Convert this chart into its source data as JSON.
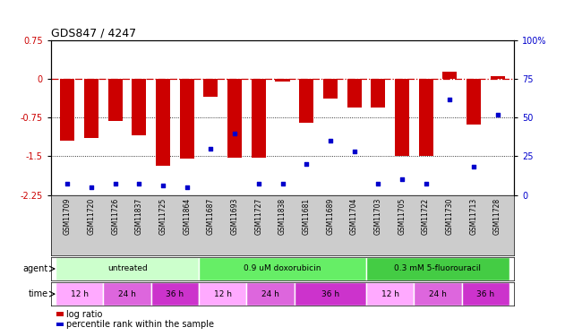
{
  "title": "GDS847 / 4247",
  "samples": [
    "GSM11709",
    "GSM11720",
    "GSM11726",
    "GSM11837",
    "GSM11725",
    "GSM11864",
    "GSM11687",
    "GSM11693",
    "GSM11727",
    "GSM11838",
    "GSM11681",
    "GSM11689",
    "GSM11704",
    "GSM11703",
    "GSM11705",
    "GSM11722",
    "GSM11730",
    "GSM11713",
    "GSM11728"
  ],
  "log_ratio": [
    -1.2,
    -1.15,
    -0.82,
    -1.1,
    -1.68,
    -1.55,
    -0.35,
    -1.52,
    -1.52,
    -0.05,
    -0.85,
    -0.38,
    -0.55,
    -0.55,
    -1.5,
    -1.5,
    0.15,
    -0.88,
    0.05
  ],
  "percentile_rank": [
    7,
    5,
    7,
    7,
    6,
    5,
    30,
    40,
    7,
    7,
    20,
    35,
    28,
    7,
    10,
    7,
    62,
    18,
    52
  ],
  "ylim_left": [
    -2.25,
    0.75
  ],
  "ylim_right": [
    0,
    100
  ],
  "left_ticks": [
    0.75,
    0,
    -0.75,
    -1.5,
    -2.25
  ],
  "right_ticks": [
    100,
    75,
    50,
    25,
    0
  ],
  "bar_color": "#cc0000",
  "dot_color": "#0000cc",
  "agents": [
    {
      "label": "untreated",
      "start": 0,
      "end": 6,
      "color": "#ccffcc"
    },
    {
      "label": "0.9 uM doxorubicin",
      "start": 6,
      "end": 13,
      "color": "#66ee66"
    },
    {
      "label": "0.3 mM 5-fluorouracil",
      "start": 13,
      "end": 19,
      "color": "#44cc44"
    }
  ],
  "times": [
    {
      "label": "12 h",
      "start": 0,
      "end": 2,
      "color": "#ffaaff"
    },
    {
      "label": "24 h",
      "start": 2,
      "end": 4,
      "color": "#dd66dd"
    },
    {
      "label": "36 h",
      "start": 4,
      "end": 6,
      "color": "#cc33cc"
    },
    {
      "label": "12 h",
      "start": 6,
      "end": 8,
      "color": "#ffaaff"
    },
    {
      "label": "24 h",
      "start": 8,
      "end": 10,
      "color": "#dd66dd"
    },
    {
      "label": "36 h",
      "start": 10,
      "end": 13,
      "color": "#cc33cc"
    },
    {
      "label": "12 h",
      "start": 13,
      "end": 15,
      "color": "#ffaaff"
    },
    {
      "label": "24 h",
      "start": 15,
      "end": 17,
      "color": "#dd66dd"
    },
    {
      "label": "36 h",
      "start": 17,
      "end": 19,
      "color": "#cc33cc"
    }
  ]
}
